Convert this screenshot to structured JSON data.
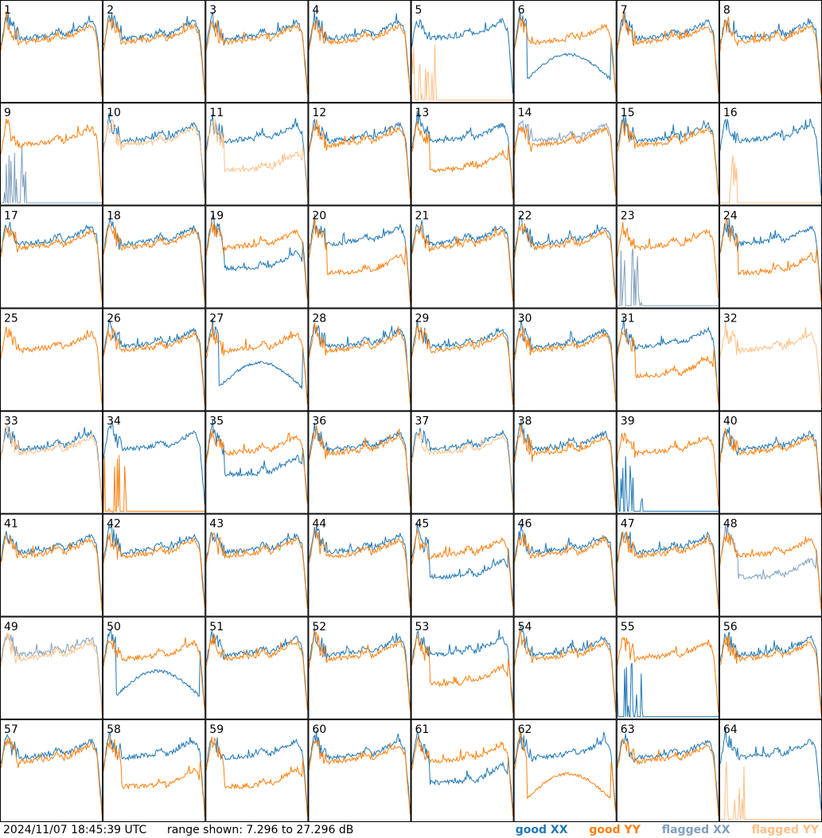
{
  "colors": {
    "good_xx": "#1f77b4",
    "good_yy": "#ff7f0e",
    "flagged_xx": "#7f9fbf",
    "flagged_yy": "#ffbf87",
    "frame": "#000000"
  },
  "footer": {
    "timestamp": "2024/11/07 18:45:39 UTC",
    "range_text": "range shown: 7.296 to 27.296 dB",
    "legend": {
      "good_xx": "good XX",
      "good_yy": "good YY",
      "flagged_xx": "flagged XX",
      "flagged_yy": "flagged YY"
    }
  },
  "chart_data": {
    "type": "line",
    "grid": "8x8",
    "y_range_db": [
      7.296,
      27.296
    ],
    "panels": [
      {
        "id": "1",
        "xx": "good",
        "yy": "good",
        "shape": "normal"
      },
      {
        "id": "2",
        "xx": "good",
        "yy": "good",
        "shape": "normal"
      },
      {
        "id": "3",
        "xx": "good",
        "yy": "good",
        "shape": "normal"
      },
      {
        "id": "4",
        "xx": "good",
        "yy": "good",
        "shape": "normal"
      },
      {
        "id": "5",
        "xx": "good",
        "yy": "flagged",
        "shape": "yy-dropout"
      },
      {
        "id": "6",
        "xx": "good",
        "yy": "good",
        "shape": "xx-dip"
      },
      {
        "id": "7",
        "xx": "good",
        "yy": "good",
        "shape": "normal"
      },
      {
        "id": "8",
        "xx": "good",
        "yy": "good",
        "shape": "normal"
      },
      {
        "id": "9",
        "xx": "flagged",
        "yy": "good",
        "shape": "xx-dropout"
      },
      {
        "id": "10",
        "xx": "good",
        "yy": "flagged",
        "shape": "normal"
      },
      {
        "id": "11",
        "xx": "good",
        "yy": "flagged",
        "shape": "yy-low"
      },
      {
        "id": "12",
        "xx": "good",
        "yy": "good",
        "shape": "normal"
      },
      {
        "id": "13",
        "xx": "good",
        "yy": "good",
        "shape": "yy-low"
      },
      {
        "id": "14",
        "xx": "flagged",
        "yy": "good",
        "shape": "normal"
      },
      {
        "id": "15",
        "xx": "good",
        "yy": "good",
        "shape": "normal"
      },
      {
        "id": "16",
        "xx": "good",
        "yy": "flagged",
        "shape": "yy-dropout"
      },
      {
        "id": "17",
        "xx": "good",
        "yy": "good",
        "shape": "normal"
      },
      {
        "id": "18",
        "xx": "good",
        "yy": "good",
        "shape": "normal"
      },
      {
        "id": "19",
        "xx": "good",
        "yy": "good",
        "shape": "xx-low"
      },
      {
        "id": "20",
        "xx": "good",
        "yy": "good",
        "shape": "yy-low"
      },
      {
        "id": "21",
        "xx": "good",
        "yy": "good",
        "shape": "normal"
      },
      {
        "id": "22",
        "xx": "good",
        "yy": "good",
        "shape": "normal"
      },
      {
        "id": "23",
        "xx": "flagged",
        "yy": "good",
        "shape": "xx-dropout"
      },
      {
        "id": "24",
        "xx": "good",
        "yy": "good",
        "shape": "yy-low"
      },
      {
        "id": "25",
        "xx": "good",
        "yy": "good",
        "shape": "yy-only"
      },
      {
        "id": "26",
        "xx": "good",
        "yy": "good",
        "shape": "normal"
      },
      {
        "id": "27",
        "xx": "good",
        "yy": "good",
        "shape": "xx-dip"
      },
      {
        "id": "28",
        "xx": "good",
        "yy": "good",
        "shape": "normal"
      },
      {
        "id": "29",
        "xx": "good",
        "yy": "good",
        "shape": "normal"
      },
      {
        "id": "30",
        "xx": "good",
        "yy": "good",
        "shape": "normal"
      },
      {
        "id": "31",
        "xx": "good",
        "yy": "good",
        "shape": "yy-low"
      },
      {
        "id": "32",
        "xx": "flagged",
        "yy": "flagged",
        "shape": "yy-only"
      },
      {
        "id": "33",
        "xx": "good",
        "yy": "flagged",
        "shape": "normal"
      },
      {
        "id": "34",
        "xx": "good",
        "yy": "good",
        "shape": "yy-dropout"
      },
      {
        "id": "35",
        "xx": "good",
        "yy": "good",
        "shape": "xx-low"
      },
      {
        "id": "36",
        "xx": "good",
        "yy": "good",
        "shape": "normal"
      },
      {
        "id": "37",
        "xx": "good",
        "yy": "flagged",
        "shape": "normal"
      },
      {
        "id": "38",
        "xx": "good",
        "yy": "good",
        "shape": "normal"
      },
      {
        "id": "39",
        "xx": "good",
        "yy": "good",
        "shape": "xx-dropout"
      },
      {
        "id": "40",
        "xx": "good",
        "yy": "good",
        "shape": "normal"
      },
      {
        "id": "41",
        "xx": "good",
        "yy": "good",
        "shape": "normal"
      },
      {
        "id": "42",
        "xx": "good",
        "yy": "good",
        "shape": "normal"
      },
      {
        "id": "43",
        "xx": "good",
        "yy": "good",
        "shape": "normal"
      },
      {
        "id": "44",
        "xx": "good",
        "yy": "good",
        "shape": "normal"
      },
      {
        "id": "45",
        "xx": "good",
        "yy": "good",
        "shape": "xx-low"
      },
      {
        "id": "46",
        "xx": "good",
        "yy": "good",
        "shape": "normal"
      },
      {
        "id": "47",
        "xx": "good",
        "yy": "good",
        "shape": "normal"
      },
      {
        "id": "48",
        "xx": "flagged",
        "yy": "good",
        "shape": "xx-low"
      },
      {
        "id": "49",
        "xx": "flagged",
        "yy": "flagged",
        "shape": "normal"
      },
      {
        "id": "50",
        "xx": "good",
        "yy": "good",
        "shape": "xx-dip"
      },
      {
        "id": "51",
        "xx": "good",
        "yy": "good",
        "shape": "normal"
      },
      {
        "id": "52",
        "xx": "good",
        "yy": "good",
        "shape": "normal"
      },
      {
        "id": "53",
        "xx": "good",
        "yy": "good",
        "shape": "yy-low"
      },
      {
        "id": "54",
        "xx": "good",
        "yy": "good",
        "shape": "normal"
      },
      {
        "id": "55",
        "xx": "good",
        "yy": "good",
        "shape": "xx-dropout"
      },
      {
        "id": "56",
        "xx": "good",
        "yy": "good",
        "shape": "normal"
      },
      {
        "id": "57",
        "xx": "good",
        "yy": "good",
        "shape": "normal"
      },
      {
        "id": "58",
        "xx": "good",
        "yy": "good",
        "shape": "yy-low"
      },
      {
        "id": "59",
        "xx": "good",
        "yy": "good",
        "shape": "yy-low"
      },
      {
        "id": "60",
        "xx": "good",
        "yy": "good",
        "shape": "normal"
      },
      {
        "id": "61",
        "xx": "good",
        "yy": "good",
        "shape": "xx-low"
      },
      {
        "id": "62",
        "xx": "good",
        "yy": "good",
        "shape": "yy-dip"
      },
      {
        "id": "63",
        "xx": "good",
        "yy": "good",
        "shape": "normal"
      },
      {
        "id": "64",
        "xx": "good",
        "yy": "flagged",
        "shape": "yy-dropout"
      }
    ]
  }
}
